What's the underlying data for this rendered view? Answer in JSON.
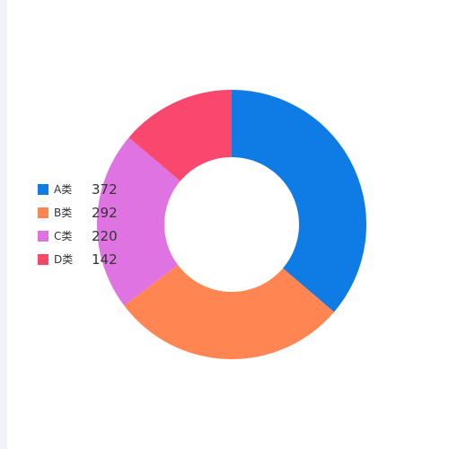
{
  "chart_data": {
    "type": "pie",
    "donut": true,
    "categories": [
      "A类",
      "B类",
      "C类",
      "D类"
    ],
    "values": [
      372,
      292,
      220,
      142
    ],
    "colors": [
      "#0f7be4",
      "#ff8552",
      "#df73e2",
      "#fa476e"
    ],
    "title": "",
    "legend_position": "left"
  }
}
